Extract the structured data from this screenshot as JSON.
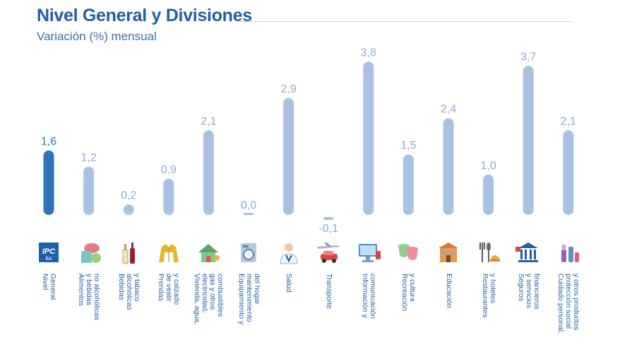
{
  "header": {
    "title": "Nivel General y Divisiones",
    "subtitle": "Variación (%) mensual"
  },
  "chart_data": {
    "type": "bar",
    "categories": [
      "Nivel General",
      "Alimentos y bebidas no alcohólicas",
      "Bebidas alcohólicas y tabaco",
      "Prendas de vestir y calzado",
      "Vivienda, agua, electricidad, gas y otros combustibles",
      "Equipamiento y mantenimiento del hogar",
      "Salud",
      "Transporte",
      "Información y comunicación",
      "Recreación y cultura",
      "Educación",
      "Restaurantes y hoteles",
      "Seguros y servicios financieros",
      "Cuidado personal, protección social y otros productos"
    ],
    "label_lines": [
      [
        "Nivel",
        "General"
      ],
      [
        "Alimentos",
        "y bebidas",
        "no alcohólicas"
      ],
      [
        "Bebidas",
        "alcohólicas",
        "y tabaco"
      ],
      [
        "Prendas",
        "de vestir",
        "y calzado"
      ],
      [
        "Vivienda, agua,",
        "electricidad,",
        "gas y otros",
        "combustibles"
      ],
      [
        "Equipamiento y",
        "mantenimiento",
        "del hogar"
      ],
      [
        "Salud"
      ],
      [
        "Transporte"
      ],
      [
        "Información y",
        "comunicación"
      ],
      [
        "Recreación",
        "y cultura"
      ],
      [
        "Educación"
      ],
      [
        "Restaurantes",
        "y hoteles"
      ],
      [
        "Seguros",
        "y servicios",
        "financieros"
      ],
      [
        "Cuidado personal,",
        "protección social",
        "y otros productos"
      ]
    ],
    "values": [
      1.6,
      1.2,
      0.2,
      0.9,
      2.1,
      0.0,
      2.9,
      -0.1,
      3.8,
      1.5,
      2.4,
      1.0,
      3.7,
      2.1
    ],
    "value_labels": [
      "1,6",
      "1,2",
      "0,2",
      "0,9",
      "2,1",
      "0,0",
      "2,9",
      "-0,1",
      "3,8",
      "1,5",
      "2,4",
      "1,0",
      "3,7",
      "2,1"
    ],
    "highlight_index": 0,
    "colors": {
      "highlight_bar": "#2e74bb",
      "bar": "#a9c1e3",
      "highlight_label": "#2e74bb",
      "value_label": "#8fa8cf",
      "category_label": "#1f5fa6"
    },
    "icons": [
      "ipc-logo-icon",
      "food-icon",
      "bottles-icon",
      "jacket-icon",
      "house-icon",
      "washing-machine-icon",
      "doctor-icon",
      "car-plane-icon",
      "computer-icon",
      "theater-masks-icon",
      "school-icon",
      "cutlery-icon",
      "bank-icon",
      "cosmetics-icon"
    ],
    "ylim": [
      -0.1,
      3.8
    ],
    "xlabel": "",
    "ylabel": "",
    "grid": false,
    "legend": "none"
  }
}
